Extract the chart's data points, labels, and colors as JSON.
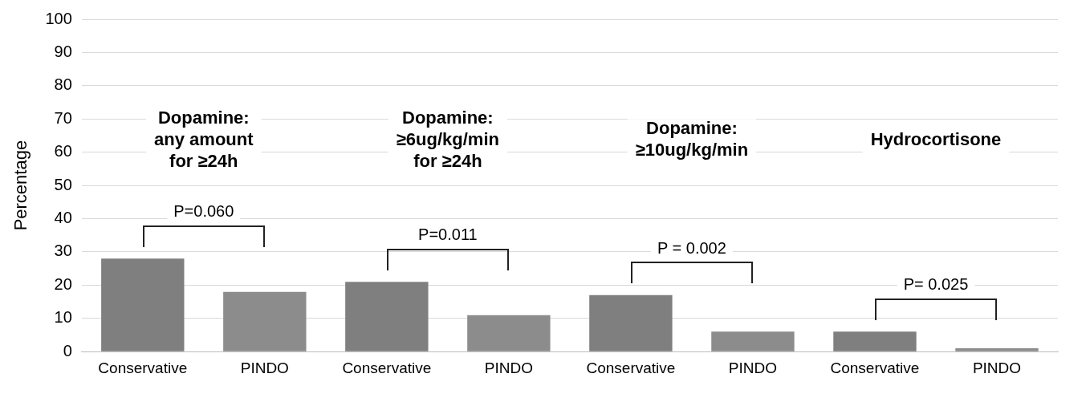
{
  "chart_data": {
    "type": "bar",
    "ylabel": "Percentage",
    "categories": [
      "Conservative",
      "PINDO",
      "Conservative",
      "PINDO",
      "Conservative",
      "PINDO",
      "Conservative",
      "PINDO"
    ],
    "values": [
      28,
      18,
      21,
      11,
      17,
      6,
      6,
      1
    ],
    "colors": [
      "#7f7f7f",
      "#8c8c8c",
      "#7f7f7f",
      "#8c8c8c",
      "#7f7f7f",
      "#8c8c8c",
      "#7f7f7f",
      "#8c8c8c"
    ],
    "ylim": [
      0,
      100
    ],
    "yticks": [
      0,
      10,
      20,
      30,
      40,
      50,
      60,
      70,
      80,
      90,
      100
    ],
    "grid": "y",
    "annotations": [
      "Dopamine:\nany amount\nfor ≥24h",
      "Dopamine:\n≥6ug/kg/min\nfor ≥24h",
      "Dopamine:\n≥10ug/kg/min",
      "Hydrocortisone",
      "P=0.060",
      "P=0.011",
      "P = 0.002",
      "P= 0.025"
    ]
  }
}
